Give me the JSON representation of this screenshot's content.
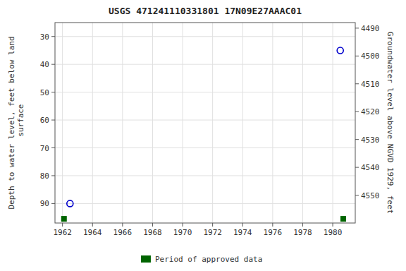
{
  "chart_data": {
    "type": "scatter",
    "title": "USGS 471241110331801 17N09E27AAAC01",
    "ylabel": "Depth to water level, feet below land\n surface",
    "y2label": "Groundwater level above NGVD 1929, feet",
    "xlim": [
      1961.5,
      1981.5
    ],
    "xticks": [
      1962,
      1964,
      1966,
      1968,
      1970,
      1972,
      1974,
      1976,
      1978,
      1980
    ],
    "ylim": [
      97,
      25
    ],
    "yticks": [
      30,
      40,
      50,
      60,
      70,
      80,
      90
    ],
    "y2lim": [
      4560,
      4488
    ],
    "y2ticks": [
      4490,
      4500,
      4510,
      4520,
      4530,
      4540,
      4550
    ],
    "grid": true,
    "legend": "bottom",
    "series": [
      {
        "color": "#0000cc",
        "marker": "circle",
        "x": [
          1962.5,
          1980.5
        ],
        "values": [
          90.0,
          35.0
        ]
      },
      {
        "name": "Period of approved data",
        "color": "#006400",
        "marker": "square",
        "x": [
          1962.1,
          1980.7
        ],
        "values": [
          95.5,
          95.5
        ]
      }
    ]
  }
}
